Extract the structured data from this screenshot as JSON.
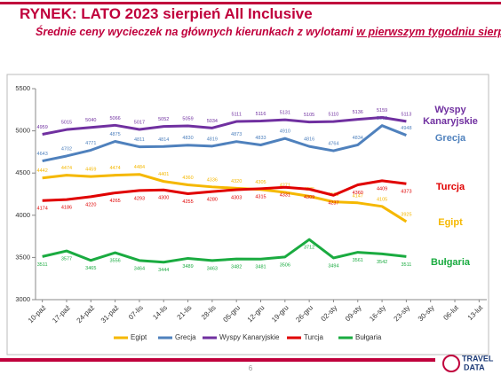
{
  "chart_data": {
    "type": "line",
    "title": "RYNEK: LATO 2023 sierpień All Inclusive",
    "subtitle": "Średnie ceny wycieczek na głównych kierunkach z wylotami",
    "subtitle_underlined": "w pierwszym tygodniu sierpnia",
    "categories": [
      "10-paź",
      "17-paź",
      "24-paź",
      "31-paź",
      "07-lis",
      "14-lis",
      "21-lis",
      "28-lis",
      "05-gru",
      "12-gru",
      "19-gru",
      "26-gru",
      "02-sty",
      "09-sty",
      "16-sty",
      "23-sty",
      "30-sty",
      "06-lut",
      "13-lut"
    ],
    "series": [
      {
        "name": "Egipt",
        "color": "#f5b800",
        "values": [
          4442,
          4474,
          4459,
          4474,
          4484,
          4401,
          4360,
          4336,
          4320,
          4305,
          4271,
          4225,
          4159,
          4147,
          4105,
          3925,
          null,
          null,
          null
        ]
      },
      {
        "name": "Grecja",
        "color": "#4f81bd",
        "values": [
          4643,
          4702,
          4771,
          4875,
          4811,
          4814,
          4830,
          4819,
          4873,
          4833,
          4910,
          4816,
          4764,
          4834,
          5062,
          4948,
          null,
          null,
          null
        ]
      },
      {
        "name": "Wyspy Kanaryjskie",
        "color": "#7030a0",
        "values": [
          4959,
          5015,
          5040,
          5066,
          5017,
          5052,
          5059,
          5034,
          5111,
          5116,
          5131,
          5105,
          5110,
          5136,
          5159,
          5113,
          null,
          null,
          null
        ]
      },
      {
        "name": "Turcja",
        "color": "#e00000",
        "values": [
          4174,
          4186,
          4220,
          4265,
          4293,
          4300,
          4255,
          4280,
          4303,
          4315,
          4331,
          4309,
          4237,
          4360,
          4409,
          4373,
          null,
          null,
          null
        ]
      },
      {
        "name": "Bułgaria",
        "color": "#1aab40",
        "values": [
          3511,
          3577,
          3465,
          3556,
          3464,
          3444,
          3489,
          3463,
          3482,
          3481,
          3506,
          3712,
          3494,
          3561,
          3542,
          3511,
          null,
          null,
          null
        ]
      }
    ],
    "ylim": [
      3000,
      5500
    ],
    "yticks": [
      3000,
      3500,
      4000,
      4500,
      5000,
      5500
    ],
    "grid": false,
    "legend": "bottom",
    "page_number": "6",
    "logo": [
      "TRAVEL",
      "DATA"
    ]
  }
}
